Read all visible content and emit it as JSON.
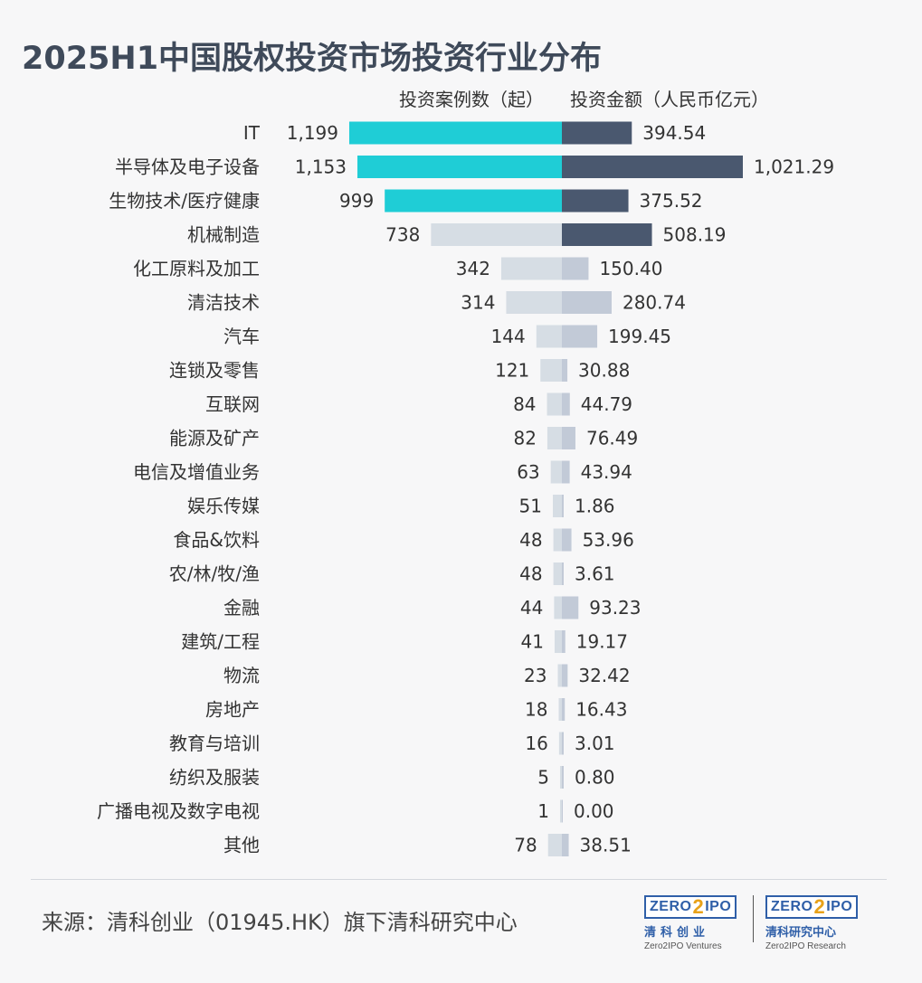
{
  "title": "2025H1中国股权投资市场投资行业分布",
  "chart_data": {
    "type": "bar",
    "orientation": "horizontal-diverging",
    "title": "2025H1中国股权投资市场投资行业分布",
    "series": [
      {
        "name": "投资案例数（起）",
        "side": "left"
      },
      {
        "name": "投资金额（人民币亿元）",
        "side": "right"
      }
    ],
    "rows": [
      {
        "category": "IT",
        "count": 1199,
        "count_label": "1,199",
        "amount": 394.54,
        "amount_label": "394.54"
      },
      {
        "category": "半导体及电子设备",
        "count": 1153,
        "count_label": "1,153",
        "amount": 1021.29,
        "amount_label": "1,021.29"
      },
      {
        "category": "生物技术/医疗健康",
        "count": 999,
        "count_label": "999",
        "amount": 375.52,
        "amount_label": "375.52"
      },
      {
        "category": "机械制造",
        "count": 738,
        "count_label": "738",
        "amount": 508.19,
        "amount_label": "508.19"
      },
      {
        "category": "化工原料及加工",
        "count": 342,
        "count_label": "342",
        "amount": 150.4,
        "amount_label": "150.40"
      },
      {
        "category": "清洁技术",
        "count": 314,
        "count_label": "314",
        "amount": 280.74,
        "amount_label": "280.74"
      },
      {
        "category": "汽车",
        "count": 144,
        "count_label": "144",
        "amount": 199.45,
        "amount_label": "199.45"
      },
      {
        "category": "连锁及零售",
        "count": 121,
        "count_label": "121",
        "amount": 30.88,
        "amount_label": "30.88"
      },
      {
        "category": "互联网",
        "count": 84,
        "count_label": "84",
        "amount": 44.79,
        "amount_label": "44.79"
      },
      {
        "category": "能源及矿产",
        "count": 82,
        "count_label": "82",
        "amount": 76.49,
        "amount_label": "76.49"
      },
      {
        "category": "电信及增值业务",
        "count": 63,
        "count_label": "63",
        "amount": 43.94,
        "amount_label": "43.94"
      },
      {
        "category": "娱乐传媒",
        "count": 51,
        "count_label": "51",
        "amount": 1.86,
        "amount_label": "1.86"
      },
      {
        "category": "食品&饮料",
        "count": 48,
        "count_label": "48",
        "amount": 53.96,
        "amount_label": "53.96"
      },
      {
        "category": "农/林/牧/渔",
        "count": 48,
        "count_label": "48",
        "amount": 3.61,
        "amount_label": "3.61"
      },
      {
        "category": "金融",
        "count": 44,
        "count_label": "44",
        "amount": 93.23,
        "amount_label": "93.23"
      },
      {
        "category": "建筑/工程",
        "count": 41,
        "count_label": "41",
        "amount": 19.17,
        "amount_label": "19.17"
      },
      {
        "category": "物流",
        "count": 23,
        "count_label": "23",
        "amount": 32.42,
        "amount_label": "32.42"
      },
      {
        "category": "房地产",
        "count": 18,
        "count_label": "18",
        "amount": 16.43,
        "amount_label": "16.43"
      },
      {
        "category": "教育与培训",
        "count": 16,
        "count_label": "16",
        "amount": 3.01,
        "amount_label": "3.01"
      },
      {
        "category": "纺织及服装",
        "count": 5,
        "count_label": "5",
        "amount": 0.8,
        "amount_label": "0.80"
      },
      {
        "category": "广播电视及数字电视",
        "count": 1,
        "count_label": "1",
        "amount": 0.0,
        "amount_label": "0.00"
      },
      {
        "category": "其他",
        "count": 78,
        "count_label": "78",
        "amount": 38.51,
        "amount_label": "38.51"
      }
    ],
    "highlight": {
      "count_top_n": 3,
      "amount_top_n": 4
    },
    "colors": {
      "count_highlight": "#1fcdd6",
      "count_normal": "#d6dde4",
      "amount_highlight": "#4a586f",
      "amount_normal": "#c2cad7",
      "text": "#333333"
    },
    "grid": false,
    "legend": "top"
  },
  "source": "来源：清科创业（01945.HK）旗下清科研究中心",
  "logos": {
    "ventures": {
      "mark_left": "ZERO",
      "mark_two": "2",
      "mark_right": "IPO",
      "cn": "清科创业",
      "en": "Zero2IPO Ventures"
    },
    "research": {
      "mark_left": "ZERO",
      "mark_two": "2",
      "mark_right": "IPO",
      "cn": "清科研究中心",
      "en": "Zero2IPO Research"
    }
  }
}
